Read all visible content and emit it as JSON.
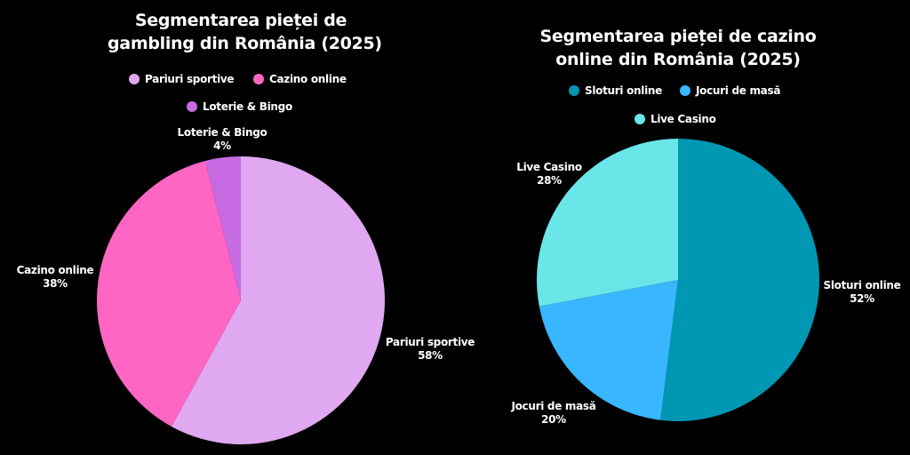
{
  "chart_data": [
    {
      "type": "pie",
      "title": "Segmentarea pieței de gambling din România (2025)",
      "categories": [
        "Pariuri sportive",
        "Cazino online",
        "Loterie & Bingo"
      ],
      "values": [
        58,
        38,
        4
      ],
      "unit": "%",
      "colors": [
        "#E0A8F0",
        "#FF66C4",
        "#C76BE3"
      ],
      "legend_position": "top",
      "start_angle": "12 o'clock, clockwise"
    },
    {
      "type": "pie",
      "title": "Segmentarea pieței de cazino online din România (2025)",
      "categories": [
        "Sloturi online",
        "Jocuri de masă",
        "Live Casino"
      ],
      "values": [
        52,
        20,
        28
      ],
      "unit": "%",
      "colors": [
        "#0097B2",
        "#38B6FF",
        "#6AE5E8"
      ],
      "legend_position": "top",
      "start_angle": "12 o'clock, clockwise"
    }
  ],
  "left": {
    "title_line1": "Segmentarea pieței de",
    "title_line2": "gambling din România (2025)",
    "legend": [
      {
        "label": "Pariuri sportive",
        "color": "#E0A8F0"
      },
      {
        "label": "Cazino online",
        "color": "#FF66C4"
      },
      {
        "label": "Loterie & Bingo",
        "color": "#C76BE3"
      }
    ],
    "labels": [
      {
        "name": "Pariuri sportive",
        "value": "58%"
      },
      {
        "name": "Cazino online",
        "value": "38%"
      },
      {
        "name": "Loterie & Bingo",
        "value": "4%"
      }
    ]
  },
  "right": {
    "title_line1": "Segmentarea pieței de cazino",
    "title_line2": "online din România (2025)",
    "legend": [
      {
        "label": "Sloturi online",
        "color": "#0097B2"
      },
      {
        "label": "Jocuri de masă",
        "color": "#38B6FF"
      },
      {
        "label": "Live Casino",
        "color": "#6AE5E8"
      }
    ],
    "labels": [
      {
        "name": "Sloturi online",
        "value": "52%"
      },
      {
        "name": "Jocuri de masă",
        "value": "20%"
      },
      {
        "name": "Live Casino",
        "value": "28%"
      }
    ]
  }
}
